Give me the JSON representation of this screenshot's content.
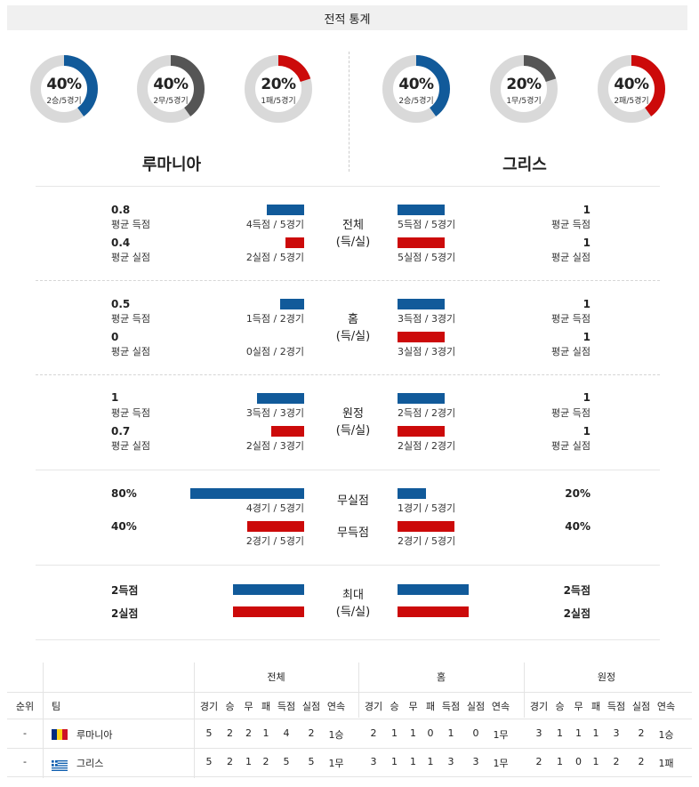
{
  "title": "전적 통계",
  "home": {
    "name": "루마니아",
    "donuts": [
      {
        "pct": "40%",
        "sub": "2승/5경기",
        "fraction": 0.4,
        "color": "#115a9a"
      },
      {
        "pct": "40%",
        "sub": "2무/5경기",
        "fraction": 0.4,
        "color": "#555555"
      },
      {
        "pct": "20%",
        "sub": "1패/5경기",
        "fraction": 0.2,
        "color": "#cc0a0a"
      }
    ]
  },
  "away": {
    "name": "그리스",
    "donuts": [
      {
        "pct": "40%",
        "sub": "2승/5경기",
        "fraction": 0.4,
        "color": "#115a9a"
      },
      {
        "pct": "20%",
        "sub": "1무/5경기",
        "fraction": 0.2,
        "color": "#555555"
      },
      {
        "pct": "40%",
        "sub": "2패/5경기",
        "fraction": 0.4,
        "color": "#cc0a0a"
      }
    ]
  },
  "sections": {
    "total": {
      "label1": "전체",
      "label2": "(득/실)",
      "home_gf": "0.8",
      "home_gf_label": "평균 득점",
      "home_gf_cap": "4득점 / 5경기",
      "home_gf_frac": 0.8,
      "home_ga": "0.4",
      "home_ga_label": "평균 실점",
      "home_ga_cap": "2실점 / 5경기",
      "home_ga_frac": 0.4,
      "away_gf": "1",
      "away_gf_label": "평균 득점",
      "away_gf_cap": "5득점 / 5경기",
      "away_gf_frac": 1,
      "away_ga": "1",
      "away_ga_label": "평균 실점",
      "away_ga_cap": "5실점 / 5경기",
      "away_ga_frac": 1
    },
    "home": {
      "label1": "홈",
      "label2": "(득/실)",
      "home_gf": "0.5",
      "home_gf_label": "평균 득점",
      "home_gf_cap": "1득점 / 2경기",
      "home_gf_frac": 0.5,
      "home_ga": "0",
      "home_ga_label": "평균 실점",
      "home_ga_cap": "0실점 / 2경기",
      "home_ga_frac": 0,
      "away_gf": "1",
      "away_gf_label": "평균 득점",
      "away_gf_cap": "3득점 / 3경기",
      "away_gf_frac": 1,
      "away_ga": "1",
      "away_ga_label": "평균 실점",
      "away_ga_cap": "3실점 / 3경기",
      "away_ga_frac": 1
    },
    "away": {
      "label1": "원정",
      "label2": "(득/실)",
      "home_gf": "1",
      "home_gf_label": "평균 득점",
      "home_gf_cap": "3득점 / 3경기",
      "home_gf_frac": 1,
      "home_ga": "0.7",
      "home_ga_label": "평균 실점",
      "home_ga_cap": "2실점 / 3경기",
      "home_ga_frac": 0.7,
      "away_gf": "1",
      "away_gf_label": "평균 득점",
      "away_gf_cap": "2득점 / 2경기",
      "away_gf_frac": 1,
      "away_ga": "1",
      "away_ga_label": "평균 실점",
      "away_ga_cap": "2실점 / 2경기",
      "away_ga_frac": 1
    },
    "clean": {
      "label_cs": "무실점",
      "label_fts": "무득점",
      "home_cs": "80%",
      "home_cs_cap": "4경기 / 5경기",
      "home_cs_frac": 0.8,
      "home_fts": "40%",
      "home_fts_cap": "2경기 / 5경기",
      "home_fts_frac": 0.4,
      "away_cs": "20%",
      "away_cs_cap": "1경기 / 5경기",
      "away_cs_frac": 0.2,
      "away_fts": "40%",
      "away_fts_cap": "2경기 / 5경기",
      "away_fts_frac": 0.4
    },
    "max": {
      "label1": "최대",
      "label2": "(득/실)",
      "home_gf": "2득점",
      "home_ga": "2실점",
      "away_gf": "2득점",
      "away_ga": "2실점"
    }
  },
  "table": {
    "group_headers": [
      "전체",
      "홈",
      "원정"
    ],
    "col_rank": "순위",
    "col_team": "팀",
    "cols": [
      "경기",
      "승",
      "무",
      "패",
      "득점",
      "실점",
      "연속"
    ],
    "rows": [
      {
        "rank": "-",
        "team": "루마니아",
        "flag": "romania",
        "total": [
          "5",
          "2",
          "2",
          "1",
          "4",
          "2",
          "1승"
        ],
        "home": [
          "2",
          "1",
          "1",
          "0",
          "1",
          "0",
          "1무"
        ],
        "away": [
          "3",
          "1",
          "1",
          "1",
          "3",
          "2",
          "1승"
        ]
      },
      {
        "rank": "-",
        "team": "그리스",
        "flag": "greece",
        "total": [
          "5",
          "2",
          "1",
          "2",
          "5",
          "5",
          "1무"
        ],
        "home": [
          "3",
          "1",
          "1",
          "1",
          "3",
          "3",
          "1무"
        ],
        "away": [
          "2",
          "1",
          "0",
          "1",
          "2",
          "2",
          "1패"
        ]
      }
    ]
  }
}
